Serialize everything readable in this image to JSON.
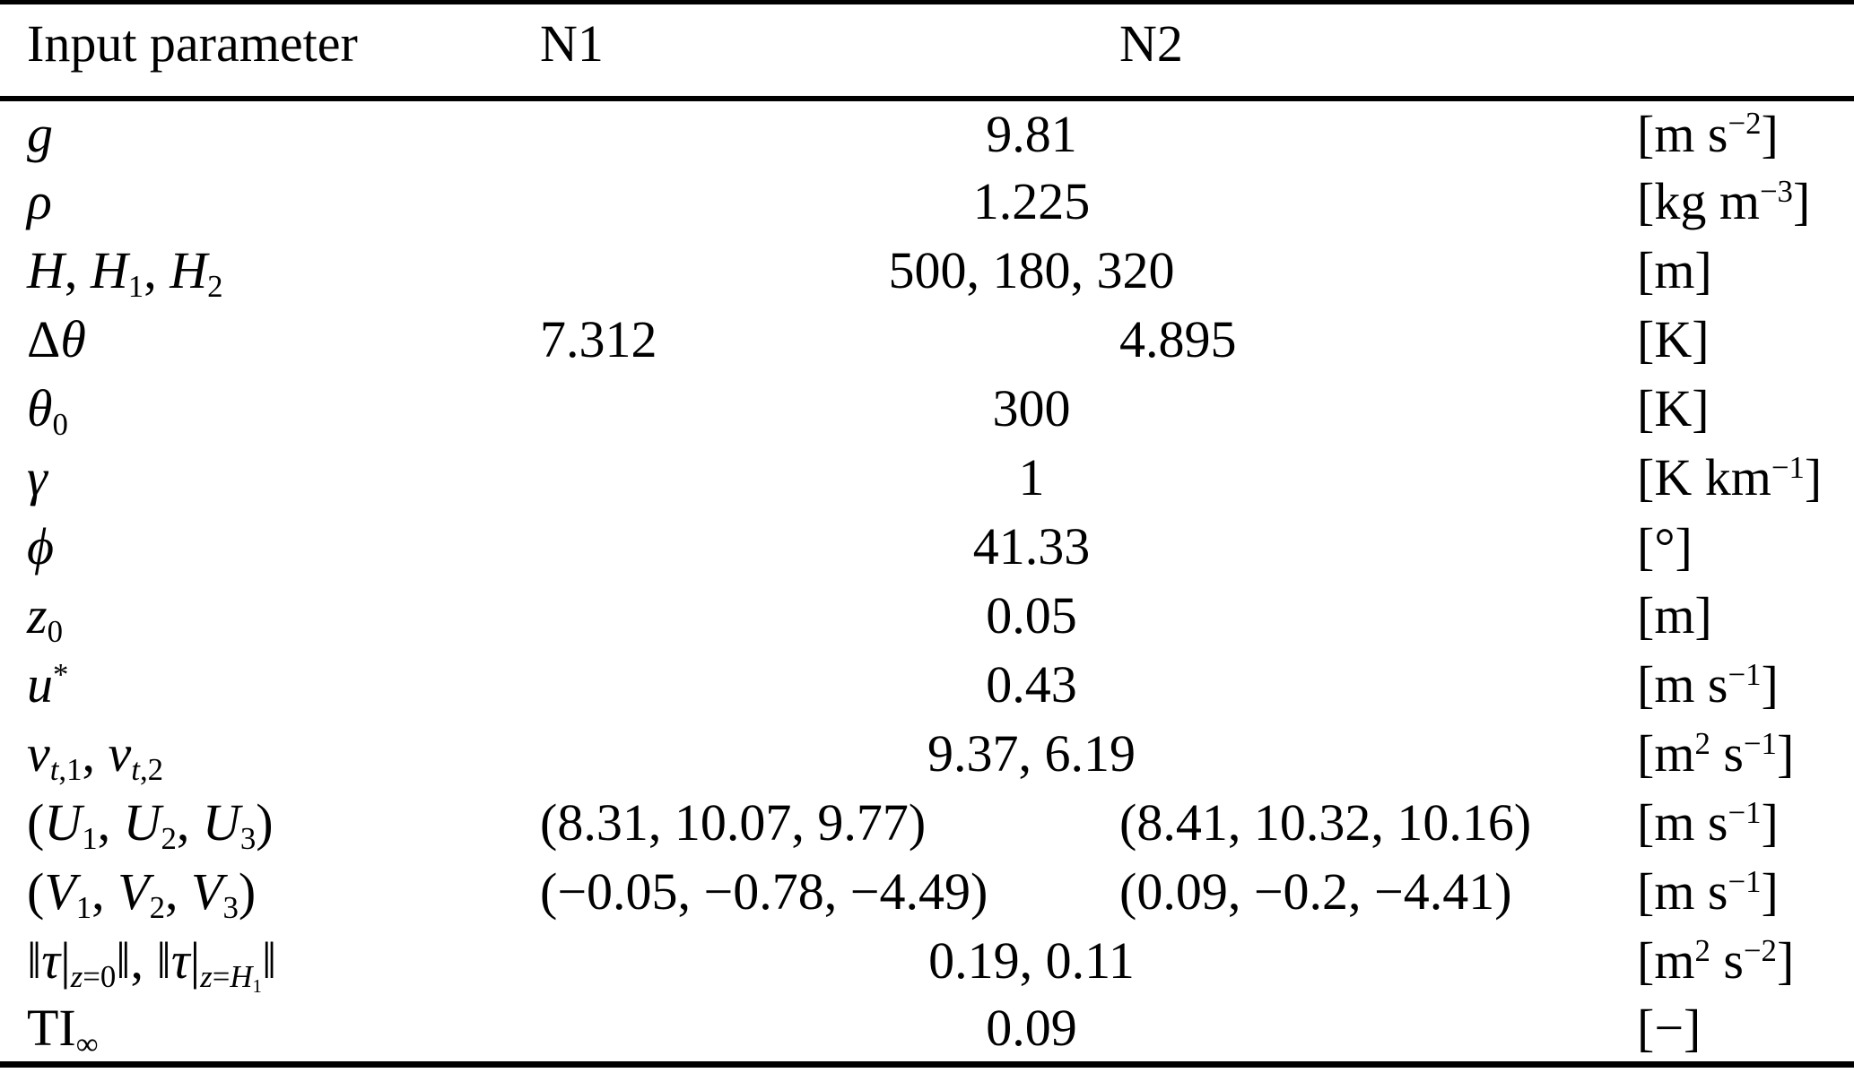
{
  "colors": {
    "background": "#ffffff",
    "text": "#000000",
    "rules": "#000000"
  },
  "header": {
    "param": "Input parameter",
    "n1": "N1",
    "n2": "N2",
    "units": ""
  },
  "rows": [
    {
      "param": "<i>g</i>",
      "value": "9.81",
      "units": "[m s<sup>−2</sup>]"
    },
    {
      "param": "<i>ρ</i>",
      "value": "1.225",
      "units": "[kg m<sup>−3</sup>]"
    },
    {
      "param": "<i>H</i>, <i>H</i><sub>1</sub>, <i>H</i><sub>2</sub>",
      "value": "500, 180, 320",
      "units": "[m]"
    },
    {
      "param": "Δ<i>θ</i>",
      "n1": "7.312",
      "n2": "4.895",
      "units": "[K]"
    },
    {
      "param": "<i>θ</i><sub>0</sub>",
      "value": "300",
      "units": "[K]"
    },
    {
      "param": "<i>γ</i>",
      "value": "1",
      "units": "[K km<sup>−1</sup>]"
    },
    {
      "param": "<i>ϕ</i>",
      "value": "41.33",
      "units": "[°]"
    },
    {
      "param": "<i>z</i><sub>0</sub>",
      "value": "0.05",
      "units": "[m]"
    },
    {
      "param": "<i>u</i><sup>*</sup>",
      "value": "0.43",
      "units": "[m s<sup>−1</sup>]"
    },
    {
      "param": "<i>ν</i><sub><i>t</i>,1</sub>, <i>ν</i><sub><i>t</i>,2</sub>",
      "value": "9.37, 6.19",
      "units": "[m<sup>2</sup> s<sup>−1</sup>]"
    },
    {
      "param": "(<i>U</i><sub>1</sub>, <i>U</i><sub>2</sub>, <i>U</i><sub>3</sub>)",
      "n1": "(8.31, 10.07, 9.77)",
      "n2": "(8.41, 10.32, 10.16)",
      "units": "[m s<sup>−1</sup>]"
    },
    {
      "param": "(<i>V</i><sub>1</sub>, <i>V</i><sub>2</sub>, <i>V</i><sub>3</sub>)",
      "n1": "(−0.05, −0.78, −4.49)",
      "n2": "(0.09, −0.2, −4.41)",
      "units": "[m s<sup>−1</sup>]"
    },
    {
      "param": "‖<i>τ</i>|<sub><i>z</i>=0</sub>‖, ‖<i>τ</i>|<sub><i>z</i>=<i>H</i><sub>1</sub></sub>‖",
      "value": "0.19, 0.11",
      "units": "[m<sup>2</sup> s<sup>−2</sup>]"
    },
    {
      "param": "TI<sub>∞</sub>",
      "value": "0.09",
      "units": "[−]"
    }
  ]
}
